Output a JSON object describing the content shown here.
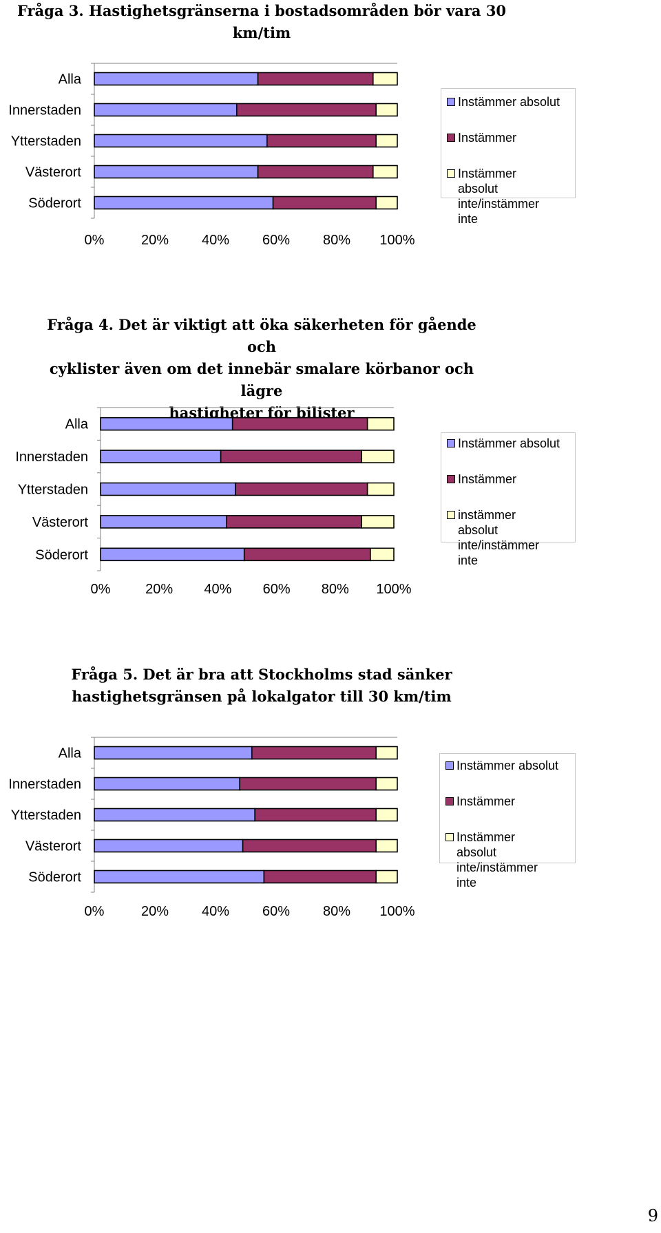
{
  "page_number": "9",
  "colors": {
    "absolut": "#9999ff",
    "instammer": "#993366",
    "inte": "#ffffcc",
    "axis": "#808080"
  },
  "charts": [
    {
      "title": "Fråga 3. Hastighetsgränserna i bostadsområden bör vara 30\nkm/tim",
      "legend": [
        "Instämmer absolut",
        "Instämmer",
        "Instämmer absolut\ninte/instämmer inte"
      ]
    },
    {
      "title": "Fråga 4. Det är viktigt att öka säkerheten för gående och\ncyklister även om det innebär smalare körbanor och lägre\nhastigheter för bilister",
      "legend": [
        "Instämmer absolut",
        "Instämmer",
        "instämmer absolut\ninte/instämmer inte"
      ]
    },
    {
      "title": "Fråga 5. Det är bra att Stockholms stad sänker\nhastighetsgränsen på lokalgator till 30 km/tim",
      "legend": [
        "Instämmer absolut",
        "Instämmer",
        "Instämmer absolut\ninte/instämmer inte"
      ]
    }
  ],
  "chart_data": [
    {
      "type": "bar",
      "orientation": "horizontal",
      "stacked": "percent",
      "title": "Fråga 3. Hastighetsgränserna i bostadsområden bör vara 30 km/tim",
      "categories": [
        "Alla",
        "Innerstaden",
        "Ytterstaden",
        "Västerort",
        "Söderort"
      ],
      "series": [
        {
          "name": "Instämmer absolut",
          "values": [
            54,
            47,
            57,
            54,
            59
          ]
        },
        {
          "name": "Instämmer",
          "values": [
            38,
            46,
            36,
            38,
            34
          ]
        },
        {
          "name": "Instämmer absolut inte/instämmer inte",
          "values": [
            8,
            7,
            7,
            8,
            7
          ]
        }
      ],
      "xticks": [
        "0%",
        "20%",
        "40%",
        "60%",
        "80%",
        "100%"
      ],
      "xlim": [
        0,
        100
      ],
      "legend": "right"
    },
    {
      "type": "bar",
      "orientation": "horizontal",
      "stacked": "percent",
      "title": "Fråga 4. Det är viktigt att öka säkerheten för gående och cyklister även om det innebär smalare körbanor och lägre hastigheter för bilister",
      "categories": [
        "Alla",
        "Innerstaden",
        "Ytterstaden",
        "Västerort",
        "Söderort"
      ],
      "series": [
        {
          "name": "Instämmer absolut",
          "values": [
            45,
            41,
            46,
            43,
            49
          ]
        },
        {
          "name": "Instämmer",
          "values": [
            46,
            48,
            45,
            46,
            43
          ]
        },
        {
          "name": "instämmer absolut inte/instämmer inte",
          "values": [
            9,
            11,
            9,
            11,
            8
          ]
        }
      ],
      "xticks": [
        "0%",
        "20%",
        "40%",
        "60%",
        "80%",
        "100%"
      ],
      "xlim": [
        0,
        100
      ],
      "legend": "right"
    },
    {
      "type": "bar",
      "orientation": "horizontal",
      "stacked": "percent",
      "title": "Fråga 5. Det är bra att Stockholms stad sänker hastighetsgränsen på lokalgator till 30 km/tim",
      "categories": [
        "Alla",
        "Innerstaden",
        "Ytterstaden",
        "Västerort",
        "Söderort"
      ],
      "series": [
        {
          "name": "Instämmer absolut",
          "values": [
            52,
            48,
            53,
            49,
            56
          ]
        },
        {
          "name": "Instämmer",
          "values": [
            41,
            45,
            40,
            44,
            37
          ]
        },
        {
          "name": "Instämmer absolut inte/instämmer inte",
          "values": [
            7,
            7,
            7,
            7,
            7
          ]
        }
      ],
      "xticks": [
        "0%",
        "20%",
        "40%",
        "60%",
        "80%",
        "100%"
      ],
      "xlim": [
        0,
        100
      ],
      "legend": "right"
    }
  ]
}
